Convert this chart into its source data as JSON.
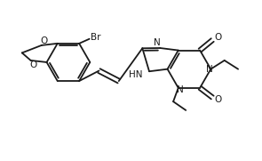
{
  "background_color": "#ffffff",
  "line_color": "#1a1a1a",
  "line_width": 1.3,
  "figsize": [
    2.95,
    1.81
  ],
  "dpi": 100,
  "xlim": [
    0.0,
    10.5
  ],
  "ylim": [
    -1.5,
    5.5
  ]
}
